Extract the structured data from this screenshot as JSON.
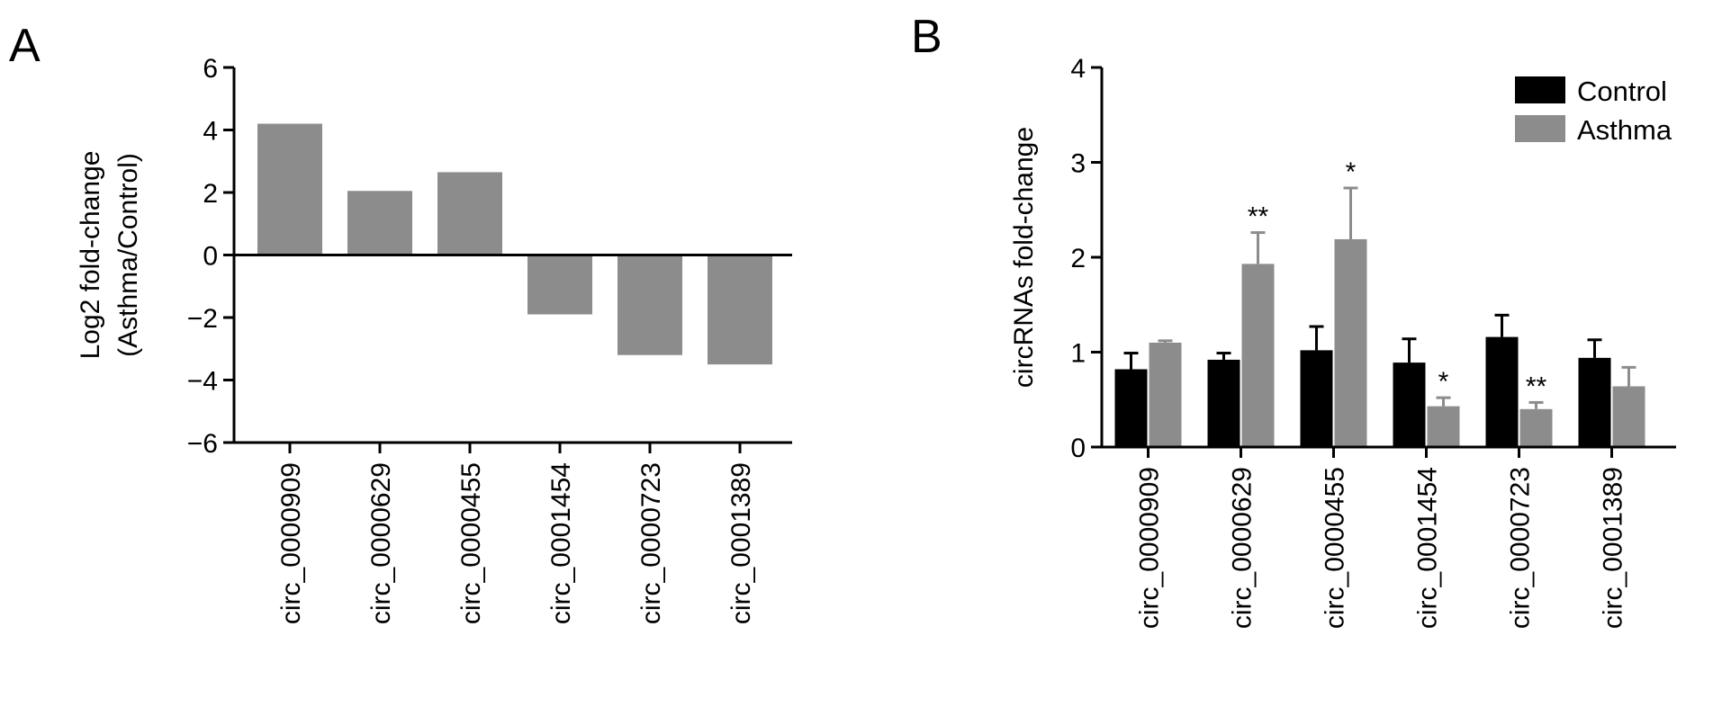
{
  "chart_data": [
    {
      "panel": "A",
      "type": "bar",
      "categories": [
        "circ_0000909",
        "circ_0000629",
        "circ_0000455",
        "circ_0001454",
        "circ_0000723",
        "circ_0001389"
      ],
      "values": [
        4.2,
        2.05,
        2.65,
        -1.9,
        -3.2,
        -3.5
      ],
      "ylabel": "Log2 fold-change (Asthma/Control)",
      "ylabel_lines": [
        "Log2 fold-change",
        "(Asthma/Control)"
      ],
      "ylim": [
        -6,
        6
      ],
      "yticks": [
        -6,
        -4,
        -2,
        0,
        2,
        4,
        6
      ],
      "ytick_labels": [
        "−6",
        "−4",
        "−2",
        "0",
        "2",
        "4",
        "6"
      ],
      "bar_color": "#8c8c8c",
      "grid": false
    },
    {
      "panel": "B",
      "type": "bar",
      "categories": [
        "circ_0000909",
        "circ_0000629",
        "circ_0000455",
        "circ_0001454",
        "circ_0000723",
        "circ_0001389"
      ],
      "series": [
        {
          "name": "Control",
          "color": "#000000",
          "values": [
            0.82,
            0.92,
            1.02,
            0.89,
            1.16,
            0.94
          ],
          "errors": [
            0.17,
            0.07,
            0.25,
            0.25,
            0.23,
            0.19
          ],
          "significance": [
            "",
            "",
            "",
            "",
            "",
            ""
          ]
        },
        {
          "name": "Asthma",
          "color": "#8c8c8c",
          "values": [
            1.1,
            1.93,
            2.19,
            0.43,
            0.4,
            0.64
          ],
          "errors": [
            0.02,
            0.33,
            0.54,
            0.09,
            0.07,
            0.2
          ],
          "significance": [
            "",
            "**",
            "*",
            "*",
            "**",
            ""
          ]
        }
      ],
      "ylabel": "circRNAs fold-change",
      "ylim": [
        0,
        4
      ],
      "yticks": [
        0,
        1,
        2,
        3,
        4
      ],
      "ytick_labels": [
        "0",
        "1",
        "2",
        "3",
        "4"
      ],
      "legend_position": "top-right",
      "grid": false
    }
  ]
}
